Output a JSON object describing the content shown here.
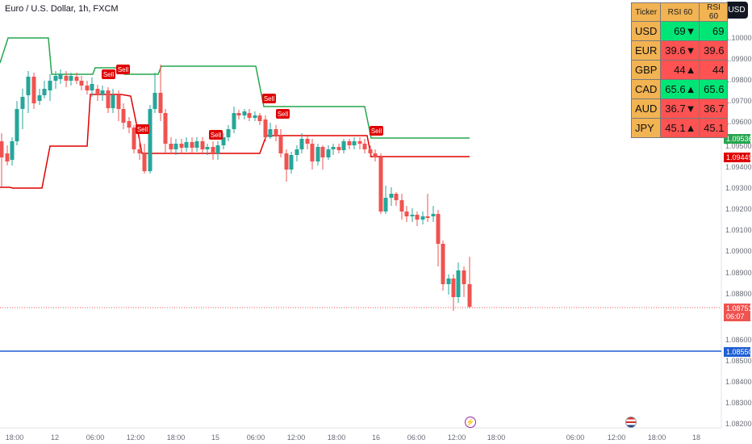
{
  "header": {
    "symbol_title": "Euro / U.S. Dollar, 1h, FXCM",
    "currency_button": "USD"
  },
  "price_axis": [
    "1.10000",
    "1.09900",
    "1.09800",
    "1.09700",
    "1.09600",
    "1.09500",
    "1.09400",
    "1.09300",
    "1.09200",
    "1.09100",
    "1.09000",
    "1.08900",
    "1.08800",
    "1.08600",
    "1.08500",
    "1.08400",
    "1.08300",
    "1.08200"
  ],
  "time_axis": [
    "18:00",
    "12",
    "06:00",
    "12:00",
    "18:00",
    "15",
    "06:00",
    "12:00",
    "18:00",
    "16",
    "06:00",
    "12:00",
    "18:00",
    "06:00",
    "12:00",
    "18:00",
    "18"
  ],
  "price_badges": {
    "green_line": "1.09536",
    "red_line": "1.09449",
    "last_price": "1.08751",
    "countdown": "06:07",
    "blue_line": "1.08550"
  },
  "signal_label": "Sell",
  "rsi_table": {
    "headers": [
      "Ticker",
      "RSI 60",
      "RSI 60"
    ],
    "rows": [
      {
        "ticker": "USD",
        "value": "69",
        "arrow": "▼",
        "prev": "69",
        "color": "#00e676"
      },
      {
        "ticker": "EUR",
        "value": "39.6",
        "arrow": "▼",
        "prev": "39.6",
        "color": "#ff5252"
      },
      {
        "ticker": "GBP",
        "value": "44",
        "arrow": "▲",
        "prev": "44",
        "color": "#ff5252"
      },
      {
        "ticker": "CAD",
        "value": "65.6",
        "arrow": "▲",
        "prev": "65.6",
        "color": "#00e676"
      },
      {
        "ticker": "AUD",
        "value": "36.7",
        "arrow": "▼",
        "prev": "36.7",
        "color": "#ff5252"
      },
      {
        "ticker": "JPY",
        "value": "45.1",
        "arrow": "▲",
        "prev": "45.1",
        "color": "#ff5252"
      }
    ]
  },
  "colors": {
    "up": "#26a69a",
    "down": "#ef5350",
    "green_band": "#26a64f",
    "red_band": "#e00000",
    "blue_line": "#1f5fd6"
  }
}
